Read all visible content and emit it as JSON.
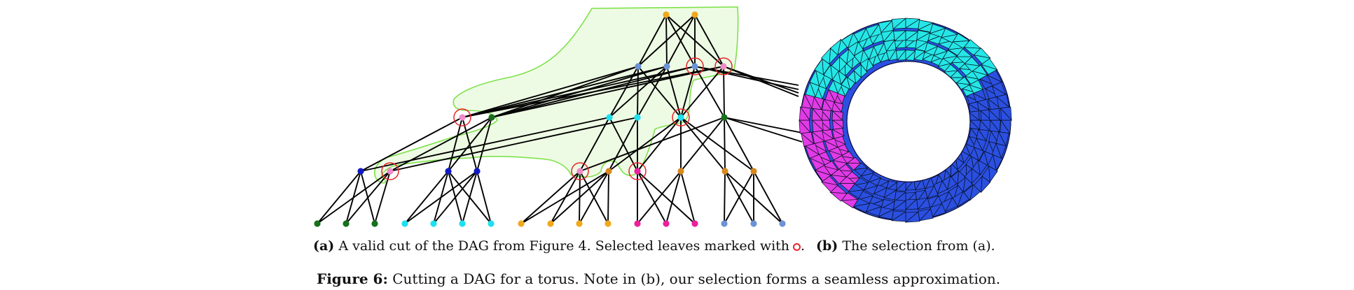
{
  "figure": {
    "subcaption_a": {
      "label": "(a)",
      "text": "A valid cut of the DAG from Figure 4. Selected leaves marked with",
      "trailing": "."
    },
    "subcaption_b": {
      "label": "(b)",
      "text": "The selection from (a)."
    },
    "main_caption": {
      "label": "Figure 6:",
      "text": "Cutting a DAG for a torus. Note in (b), our selection forms a seamless approximation."
    }
  },
  "colors": {
    "gold": "#f0a81c",
    "blue_light": "#6b93d6",
    "cyan": "#1ee0f0",
    "green": "#16701c",
    "navy": "#1219c4",
    "magenta": "#ee1f9a",
    "pink": "#f08ac8",
    "orange": "#d7891f",
    "selection_ring": "#e8262a",
    "cut_region_fill": "#eefbe4",
    "cut_region_line": "#7de24a",
    "torus_cyan": "#25e6e6",
    "torus_blue": "#2b4fe0",
    "torus_magenta": "#e23ae6"
  },
  "dag": {
    "nodes": [
      {
        "id": "r0",
        "color": "gold",
        "selected": false
      },
      {
        "id": "r1",
        "color": "gold",
        "selected": false
      },
      {
        "id": "a0",
        "color": "blue_light",
        "selected": false
      },
      {
        "id": "a1",
        "color": "blue_light",
        "selected": false
      },
      {
        "id": "a2",
        "color": "blue_light",
        "selected": true
      },
      {
        "id": "a3",
        "color": "pink",
        "selected": true
      },
      {
        "id": "b0",
        "color": "pink",
        "selected": true
      },
      {
        "id": "b1",
        "color": "green",
        "selected": false
      },
      {
        "id": "b2",
        "color": "cyan",
        "selected": false
      },
      {
        "id": "b3",
        "color": "cyan",
        "selected": false
      },
      {
        "id": "b4",
        "color": "cyan",
        "selected": true
      },
      {
        "id": "b5",
        "color": "green",
        "selected": false
      },
      {
        "id": "c0",
        "color": "navy",
        "selected": false
      },
      {
        "id": "c1",
        "color": "pink",
        "selected": true
      },
      {
        "id": "c2",
        "color": "navy",
        "selected": false
      },
      {
        "id": "c3",
        "color": "navy",
        "selected": false
      },
      {
        "id": "c4",
        "color": "pink",
        "selected": true
      },
      {
        "id": "c5",
        "color": "orange",
        "selected": false
      },
      {
        "id": "c6",
        "color": "magenta",
        "selected": true
      },
      {
        "id": "c7",
        "color": "orange",
        "selected": false
      },
      {
        "id": "c8",
        "color": "orange",
        "selected": false
      },
      {
        "id": "c9",
        "color": "orange",
        "selected": false
      },
      {
        "id": "l0",
        "color": "green",
        "selected": false
      },
      {
        "id": "l1",
        "color": "green",
        "selected": false
      },
      {
        "id": "l2",
        "color": "green",
        "selected": false
      },
      {
        "id": "l3",
        "color": "cyan",
        "selected": false
      },
      {
        "id": "l4",
        "color": "cyan",
        "selected": false
      },
      {
        "id": "l5",
        "color": "cyan",
        "selected": false
      },
      {
        "id": "l6",
        "color": "cyan",
        "selected": false
      },
      {
        "id": "l7",
        "color": "gold",
        "selected": false
      },
      {
        "id": "l8",
        "color": "gold",
        "selected": false
      },
      {
        "id": "l9",
        "color": "gold",
        "selected": false
      },
      {
        "id": "l10",
        "color": "gold",
        "selected": false
      },
      {
        "id": "l11",
        "color": "magenta",
        "selected": false
      },
      {
        "id": "l12",
        "color": "magenta",
        "selected": false
      },
      {
        "id": "l13",
        "color": "magenta",
        "selected": false
      },
      {
        "id": "l14",
        "color": "blue_light",
        "selected": false
      },
      {
        "id": "l15",
        "color": "blue_light",
        "selected": false
      },
      {
        "id": "l16",
        "color": "blue_light",
        "selected": false
      }
    ],
    "edges": [
      [
        "r0",
        "a0"
      ],
      [
        "r0",
        "a1"
      ],
      [
        "r0",
        "a2"
      ],
      [
        "r0",
        "a3"
      ],
      [
        "r1",
        "a0"
      ],
      [
        "r1",
        "a1"
      ],
      [
        "r1",
        "a2"
      ],
      [
        "r1",
        "a3"
      ],
      [
        "a0",
        "b0"
      ],
      [
        "a0",
        "b1"
      ],
      [
        "a0",
        "b2"
      ],
      [
        "a0",
        "b3"
      ],
      [
        "a0",
        "b4"
      ],
      [
        "a1",
        "b0"
      ],
      [
        "a1",
        "b1"
      ],
      [
        "a1",
        "b2"
      ],
      [
        "a1",
        "b3"
      ],
      [
        "a1",
        "b4"
      ],
      [
        "a2",
        "b0"
      ],
      [
        "a2",
        "b1"
      ],
      [
        "a2",
        "b4"
      ],
      [
        "a2",
        "b5"
      ],
      [
        "a3",
        "b0"
      ],
      [
        "a3",
        "b1"
      ],
      [
        "a3",
        "b4"
      ],
      [
        "a3",
        "b5"
      ],
      [
        "b0",
        "c0"
      ],
      [
        "b0",
        "c2"
      ],
      [
        "b0",
        "c3"
      ],
      [
        "b1",
        "c1"
      ],
      [
        "b1",
        "c2"
      ],
      [
        "b1",
        "c3"
      ],
      [
        "b2",
        "c0"
      ],
      [
        "b2",
        "c4"
      ],
      [
        "b2",
        "c6"
      ],
      [
        "b3",
        "c1"
      ],
      [
        "b3",
        "c5"
      ],
      [
        "b3",
        "c6"
      ],
      [
        "b4",
        "c5"
      ],
      [
        "b4",
        "c6"
      ],
      [
        "b4",
        "c7"
      ],
      [
        "b4",
        "c8"
      ],
      [
        "b4",
        "c9"
      ],
      [
        "b5",
        "c4"
      ],
      [
        "b5",
        "c7"
      ],
      [
        "b5",
        "c8"
      ],
      [
        "b5",
        "c9"
      ],
      [
        "c0",
        "l0"
      ],
      [
        "c0",
        "l1"
      ],
      [
        "c0",
        "l2"
      ],
      [
        "c1",
        "l0"
      ],
      [
        "c1",
        "l1"
      ],
      [
        "c1",
        "l2"
      ],
      [
        "c2",
        "l3"
      ],
      [
        "c2",
        "l4"
      ],
      [
        "c2",
        "l5"
      ],
      [
        "c2",
        "l6"
      ],
      [
        "c3",
        "l3"
      ],
      [
        "c3",
        "l4"
      ],
      [
        "c3",
        "l5"
      ],
      [
        "c3",
        "l6"
      ],
      [
        "c4",
        "l7"
      ],
      [
        "c4",
        "l8"
      ],
      [
        "c4",
        "l9"
      ],
      [
        "c4",
        "l10"
      ],
      [
        "c5",
        "l7"
      ],
      [
        "c5",
        "l8"
      ],
      [
        "c5",
        "l9"
      ],
      [
        "c5",
        "l10"
      ],
      [
        "c6",
        "l11"
      ],
      [
        "c6",
        "l12"
      ],
      [
        "c6",
        "l13"
      ],
      [
        "c7",
        "l11"
      ],
      [
        "c7",
        "l12"
      ],
      [
        "c7",
        "l13"
      ],
      [
        "c8",
        "l14"
      ],
      [
        "c8",
        "l15"
      ],
      [
        "c8",
        "l16"
      ],
      [
        "c9",
        "l14"
      ],
      [
        "c9",
        "l15"
      ],
      [
        "c9",
        "l16"
      ]
    ]
  }
}
